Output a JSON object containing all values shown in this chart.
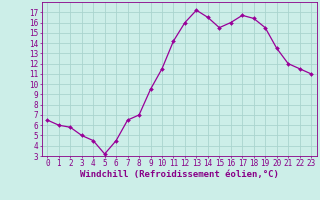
{
  "x": [
    0,
    1,
    2,
    3,
    4,
    5,
    6,
    7,
    8,
    9,
    10,
    11,
    12,
    13,
    14,
    15,
    16,
    17,
    18,
    19,
    20,
    21,
    22,
    23
  ],
  "y": [
    6.5,
    6.0,
    5.8,
    5.0,
    4.5,
    3.2,
    4.5,
    6.5,
    7.0,
    9.5,
    11.5,
    14.2,
    16.0,
    17.2,
    16.5,
    15.5,
    16.0,
    16.7,
    16.4,
    15.5,
    13.5,
    12.0,
    11.5,
    11.0
  ],
  "line_color": "#990099",
  "marker": "D",
  "marker_size": 2.0,
  "bg_color": "#cceee8",
  "grid_color": "#aad4ce",
  "xlabel": "Windchill (Refroidissement éolien,°C)",
  "xlim": [
    -0.5,
    23.5
  ],
  "ylim": [
    3,
    18
  ],
  "yticks": [
    3,
    4,
    5,
    6,
    7,
    8,
    9,
    10,
    11,
    12,
    13,
    14,
    15,
    16,
    17
  ],
  "xticks": [
    0,
    1,
    2,
    3,
    4,
    5,
    6,
    7,
    8,
    9,
    10,
    11,
    12,
    13,
    14,
    15,
    16,
    17,
    18,
    19,
    20,
    21,
    22,
    23
  ],
  "tick_color": "#880088",
  "tick_fontsize": 5.5,
  "xlabel_fontsize": 6.5,
  "spine_color": "#880088",
  "linewidth": 0.9
}
